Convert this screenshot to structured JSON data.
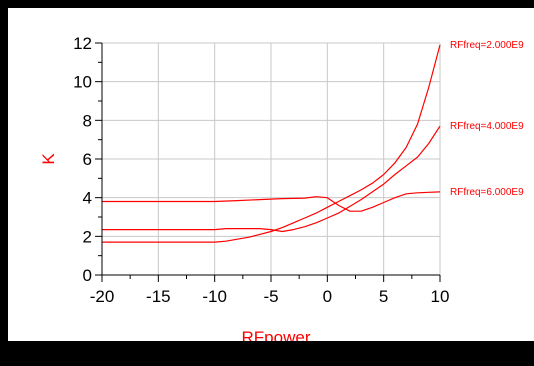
{
  "chart_data": {
    "type": "line",
    "title": "",
    "xlabel": "RFpower",
    "ylabel": "K",
    "xlim": [
      -20,
      10
    ],
    "ylim": [
      0,
      12
    ],
    "xticks": [
      -20,
      -15,
      -10,
      -5,
      0,
      5,
      10
    ],
    "yticks": [
      0,
      2,
      4,
      6,
      8,
      10,
      12
    ],
    "grid": true,
    "series_color": "#ff0000",
    "series": [
      {
        "name": "RFfreq=2.000E9",
        "points": [
          [
            -20,
            1.7
          ],
          [
            -15,
            1.7
          ],
          [
            -10,
            1.7
          ],
          [
            -9,
            1.75
          ],
          [
            -8,
            1.85
          ],
          [
            -7,
            1.95
          ],
          [
            -6,
            2.1
          ],
          [
            -5,
            2.25
          ],
          [
            -4,
            2.45
          ],
          [
            -3,
            2.7
          ],
          [
            -2,
            2.95
          ],
          [
            -1,
            3.2
          ],
          [
            0,
            3.5
          ],
          [
            1,
            3.8
          ],
          [
            2,
            4.1
          ],
          [
            3,
            4.4
          ],
          [
            4,
            4.75
          ],
          [
            5,
            5.2
          ],
          [
            6,
            5.8
          ],
          [
            7,
            6.6
          ],
          [
            8,
            7.8
          ],
          [
            9,
            9.7
          ],
          [
            10,
            11.9
          ]
        ]
      },
      {
        "name": "RFfreq=4.000E9",
        "points": [
          [
            -20,
            2.35
          ],
          [
            -15,
            2.35
          ],
          [
            -10,
            2.35
          ],
          [
            -9,
            2.4
          ],
          [
            -8,
            2.4
          ],
          [
            -7,
            2.4
          ],
          [
            -6,
            2.4
          ],
          [
            -5,
            2.35
          ],
          [
            -4,
            2.25
          ],
          [
            -3,
            2.35
          ],
          [
            -2,
            2.5
          ],
          [
            -1,
            2.7
          ],
          [
            0,
            2.95
          ],
          [
            1,
            3.2
          ],
          [
            2,
            3.55
          ],
          [
            3,
            3.9
          ],
          [
            4,
            4.3
          ],
          [
            5,
            4.7
          ],
          [
            6,
            5.2
          ],
          [
            7,
            5.65
          ],
          [
            8,
            6.1
          ],
          [
            9,
            6.8
          ],
          [
            10,
            7.7
          ]
        ]
      },
      {
        "name": "RFfreq=6.000E9",
        "points": [
          [
            -20,
            3.8
          ],
          [
            -15,
            3.8
          ],
          [
            -10,
            3.8
          ],
          [
            -8,
            3.85
          ],
          [
            -6,
            3.9
          ],
          [
            -4,
            3.95
          ],
          [
            -2,
            3.98
          ],
          [
            -1,
            4.05
          ],
          [
            0,
            4.0
          ],
          [
            1,
            3.6
          ],
          [
            2,
            3.3
          ],
          [
            3,
            3.3
          ],
          [
            4,
            3.5
          ],
          [
            5,
            3.75
          ],
          [
            6,
            4.0
          ],
          [
            7,
            4.2
          ],
          [
            8,
            4.25
          ],
          [
            9,
            4.28
          ],
          [
            10,
            4.3
          ]
        ]
      }
    ]
  }
}
